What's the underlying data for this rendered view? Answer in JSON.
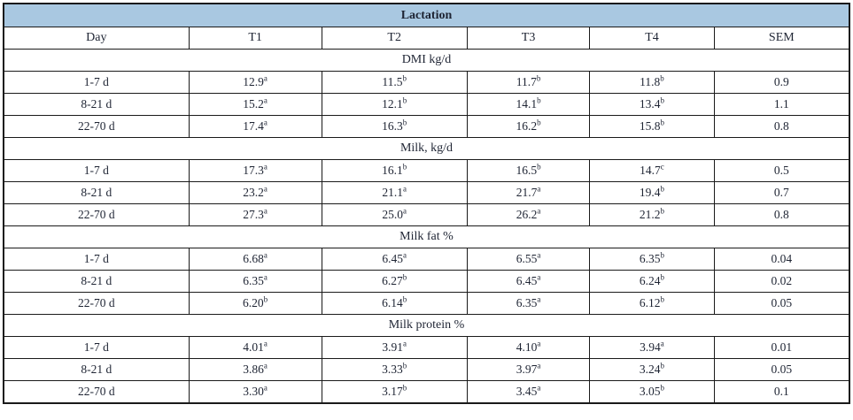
{
  "title": "Lactation",
  "columns": [
    "Day",
    "T1",
    "T2",
    "T3",
    "T4",
    "SEM"
  ],
  "sections": [
    {
      "label": "DMI kg/d",
      "rows": [
        {
          "day": "1-7 d",
          "cells": [
            [
              "12.9",
              "a"
            ],
            [
              "11.5",
              "b"
            ],
            [
              "11.7",
              "b"
            ],
            [
              "11.8",
              "b"
            ]
          ],
          "sem": "0.9"
        },
        {
          "day": "8-21 d",
          "cells": [
            [
              "15.2",
              "a"
            ],
            [
              "12.1",
              "b"
            ],
            [
              "14.1",
              "b"
            ],
            [
              "13.4",
              "b"
            ]
          ],
          "sem": "1.1"
        },
        {
          "day": "22-70 d",
          "cells": [
            [
              "17.4",
              "a"
            ],
            [
              "16.3",
              "b"
            ],
            [
              "16.2",
              "b"
            ],
            [
              "15.8",
              "b"
            ]
          ],
          "sem": "0.8"
        }
      ]
    },
    {
      "label": "Milk, kg/d",
      "rows": [
        {
          "day": "1-7 d",
          "cells": [
            [
              "17.3",
              "a"
            ],
            [
              "16.1",
              "b"
            ],
            [
              "16.5",
              "b"
            ],
            [
              "14.7",
              "c"
            ]
          ],
          "sem": "0.5"
        },
        {
          "day": "8-21 d",
          "cells": [
            [
              "23.2",
              "a"
            ],
            [
              "21.1",
              "a"
            ],
            [
              "21.7",
              "a"
            ],
            [
              "19.4",
              "b"
            ]
          ],
          "sem": "0.7"
        },
        {
          "day": "22-70 d",
          "cells": [
            [
              "27.3",
              "a"
            ],
            [
              "25.0",
              "a"
            ],
            [
              "26.2",
              "a"
            ],
            [
              "21.2",
              "b"
            ]
          ],
          "sem": "0.8"
        }
      ]
    },
    {
      "label": "Milk fat %",
      "rows": [
        {
          "day": "1-7 d",
          "cells": [
            [
              "6.68",
              "a"
            ],
            [
              "6.45",
              "a"
            ],
            [
              "6.55",
              "a"
            ],
            [
              "6.35",
              "b"
            ]
          ],
          "sem": "0.04"
        },
        {
          "day": "8-21 d",
          "cells": [
            [
              "6.35",
              "a"
            ],
            [
              "6.27",
              "b"
            ],
            [
              "6.45",
              "a"
            ],
            [
              "6.24",
              "b"
            ]
          ],
          "sem": "0.02"
        },
        {
          "day": "22-70 d",
          "cells": [
            [
              "6.20",
              "b"
            ],
            [
              "6.14",
              "b"
            ],
            [
              "6.35",
              "a"
            ],
            [
              "6.12",
              "b"
            ]
          ],
          "sem": "0.05"
        }
      ]
    },
    {
      "label": "Milk protein %",
      "rows": [
        {
          "day": "1-7 d",
          "cells": [
            [
              "4.01",
              "a"
            ],
            [
              "3.91",
              "a"
            ],
            [
              "4.10",
              "a"
            ],
            [
              "3.94",
              "a"
            ]
          ],
          "sem": "0.01"
        },
        {
          "day": "8-21 d",
          "cells": [
            [
              "3.86",
              "a"
            ],
            [
              "3.33",
              "b"
            ],
            [
              "3.97",
              "a"
            ],
            [
              "3.24",
              "b"
            ]
          ],
          "sem": "0.05"
        },
        {
          "day": "22-70 d",
          "cells": [
            [
              "3.30",
              "a"
            ],
            [
              "3.17",
              "b"
            ],
            [
              "3.45",
              "a"
            ],
            [
              "3.05",
              "b"
            ]
          ],
          "sem": "0.1"
        }
      ]
    }
  ],
  "colors": {
    "header_bg": "#a9c8e1",
    "border": "#1a1a1a",
    "text": "#1e2433"
  }
}
